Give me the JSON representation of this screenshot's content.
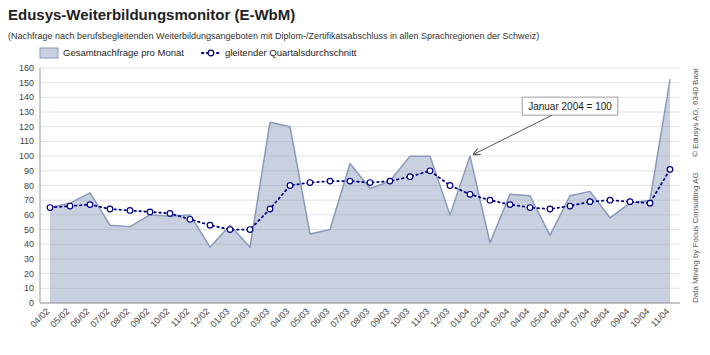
{
  "chart_data": {
    "type": "line",
    "title": "Edusys-Weiterbildungsmonitor (E-WbM)",
    "subtitle": "(Nachfrage nach berufsbegleitenden Weiterbildungsangeboten mit Diplom-/Zertifikatsabschluss in allen Sprachregionen der Schweiz)",
    "categories": [
      "04/02",
      "05/02",
      "06/02",
      "07/02",
      "08/02",
      "09/02",
      "10/02",
      "11/02",
      "12/02",
      "01/03",
      "02/03",
      "03/03",
      "04/03",
      "05/03",
      "06/03",
      "07/03",
      "08/03",
      "09/03",
      "10/03",
      "11/03",
      "12/03",
      "01/04",
      "02/04",
      "03/04",
      "04/04",
      "05/04",
      "06/04",
      "07/04",
      "08/04",
      "09/04",
      "10/04",
      "11/04"
    ],
    "series": [
      {
        "name": "Gesamtnachfrage pro Monat",
        "type": "area",
        "color": "#8899bb",
        "values": [
          65,
          68,
          75,
          53,
          52,
          60,
          59,
          60,
          38,
          53,
          38,
          123,
          120,
          47,
          50,
          95,
          78,
          83,
          100,
          100,
          60,
          100,
          41,
          74,
          73,
          46,
          73,
          76,
          58,
          68,
          70,
          152
        ]
      },
      {
        "name": "gleitender Quartalsdurchschnitt",
        "type": "line",
        "color": "#000080",
        "marker": "circle",
        "line_style": "dotted",
        "values": [
          65,
          66,
          67,
          64,
          63,
          62,
          61,
          57,
          53,
          50,
          50,
          64,
          80,
          82,
          83,
          83,
          82,
          83,
          86,
          90,
          80,
          74,
          70,
          67,
          65,
          64,
          66,
          69,
          70,
          69,
          68,
          91
        ]
      }
    ],
    "annotations": [
      {
        "text": "Januar 2004 = 100",
        "x": "01/04",
        "y": 100
      }
    ],
    "credits": [
      "© Edusys AG, 6340 Baar",
      "Data Mining by Focus Consulting AG"
    ],
    "ylim": [
      0,
      160
    ],
    "yticks": [
      0,
      10,
      20,
      30,
      40,
      50,
      60,
      70,
      80,
      90,
      100,
      110,
      120,
      130,
      140,
      150,
      160
    ],
    "grid": true,
    "legend": "upper left"
  }
}
